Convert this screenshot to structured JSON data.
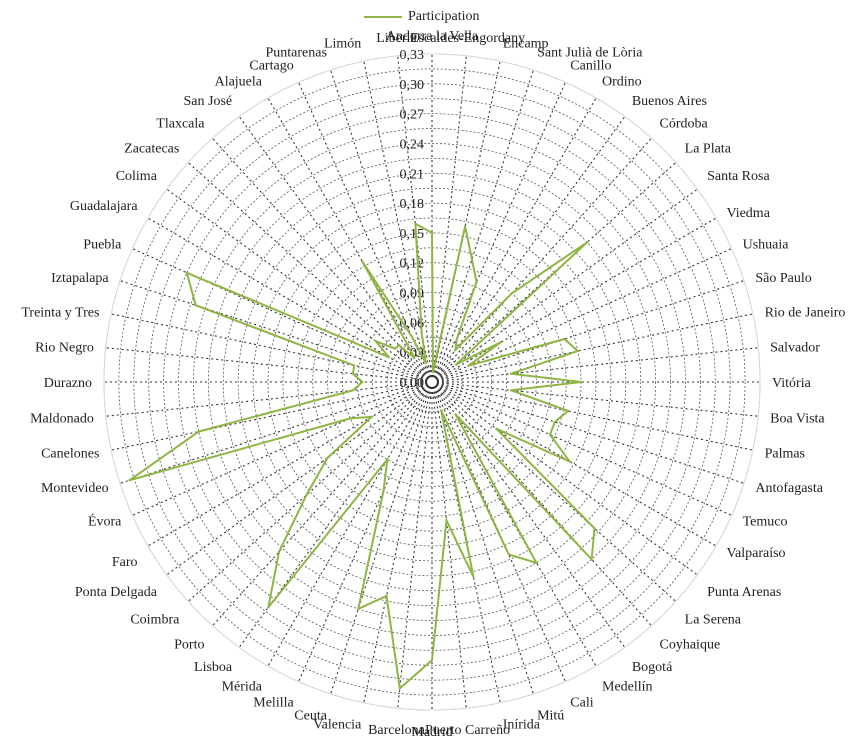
{
  "chart_data": {
    "type": "radar",
    "title": "",
    "legend": {
      "position": "top"
    },
    "grid": true,
    "ylim": [
      0,
      0.33
    ],
    "tick_step": 0.03,
    "tick_labels": [
      "0,00",
      "0,03",
      "0,06",
      "0,09",
      "0,12",
      "0,15",
      "0,18",
      "0,21",
      "0,24",
      "0,27",
      "0,30",
      "0,33"
    ],
    "categories": [
      "Andorra la Vella",
      "Escaldes-Engordany",
      "Encamp",
      "Sant Julià de Lòria",
      "Canillo",
      "Ordino",
      "Buenos Aires",
      "Córdoba",
      "La Plata",
      "Santa Rosa",
      "Viedma",
      "Ushuaia",
      "São Paulo",
      "Rio de Janeiro",
      "Salvador",
      "Vitória",
      "Boa Vista",
      "Palmas",
      "Antofagasta",
      "Temuco",
      "Valparaíso",
      "Punta Arenas",
      "La Serena",
      "Coyhaique",
      "Bogotá",
      "Medellín",
      "Cali",
      "Mitú",
      "Inírida",
      "Puerto Carreño",
      "Madrid",
      "Barcelona",
      "Valencia",
      "Ceuta",
      "Melilla",
      "Mérida",
      "Lisboa",
      "Porto",
      "Coimbra",
      "Ponta Delgada",
      "Faro",
      "Évora",
      "Montevideo",
      "Canelones",
      "Maldonado",
      "Durazno",
      "Rio Negro",
      "Treinta y Tres",
      "Iztapalapa",
      "Puebla",
      "Guadalajara",
      "Colima",
      "Zacatecas",
      "Tlaxcala",
      "San José",
      "Alajuela",
      "Cartago",
      "Puntarenas",
      "Limón",
      "Liberia"
    ],
    "series": [
      {
        "name": "Participation",
        "color": "#8fb545",
        "values": [
          0.15,
          0.01,
          0.16,
          0.13,
          0.11,
          0.05,
          0.04,
          0.12,
          0.21,
          0.03,
          0.08,
          0.04,
          0.14,
          0.15,
          0.08,
          0.15,
          0.08,
          0.14,
          0.13,
          0.13,
          0.16,
          0.08,
          0.22,
          0.24,
          0.04,
          0.21,
          0.19,
          0.03,
          0.2,
          0.14,
          0.28,
          0.31,
          0.22,
          0.24,
          0.12,
          0.09,
          0.28,
          0.23,
          0.17,
          0.13,
          0.07,
          0.09,
          0.32,
          0.24,
          0.08,
          0.07,
          0.08,
          0.08,
          0.25,
          0.27,
          0.05,
          0.07,
          0.05,
          0.05,
          0.03,
          0.14,
          0.05,
          0.02,
          0.05,
          0.16
        ]
      }
    ]
  }
}
